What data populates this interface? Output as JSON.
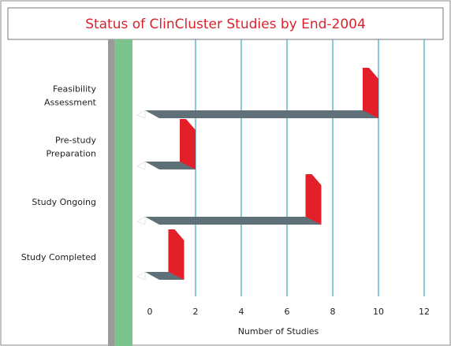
{
  "chart_data": {
    "type": "bar3d",
    "title": "Status of ClinCluster Studies by End-2004",
    "categories": [
      [
        "Feasibility",
        "Assessment"
      ],
      [
        "Pre-study",
        "Preparation"
      ],
      [
        "Study Ongoing"
      ],
      [
        "Study Completed"
      ]
    ],
    "values": [
      10,
      2,
      7.5,
      1.5
    ],
    "color": "#5f7079",
    "end_color": "#e3202a",
    "xlabel": "Number of Studies",
    "xlim": [
      0,
      12
    ],
    "xticks": [
      0,
      2,
      4,
      6,
      8,
      10,
      12
    ],
    "grid": true
  }
}
